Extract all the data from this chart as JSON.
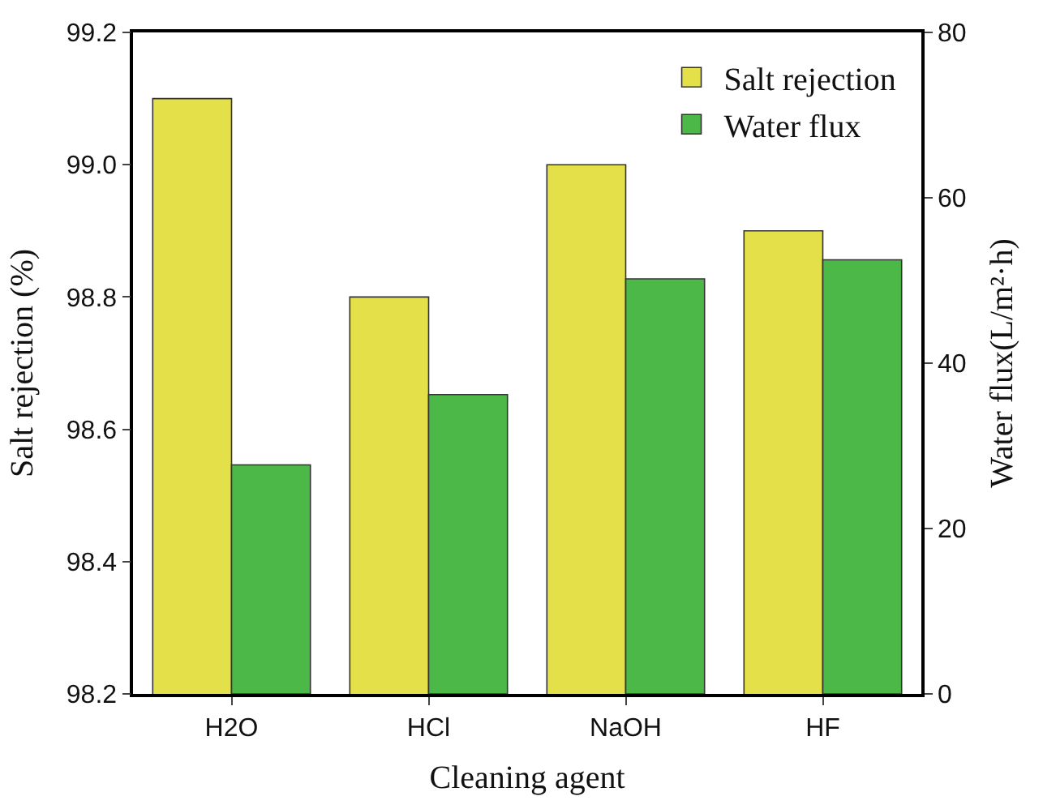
{
  "chart_data": {
    "type": "bar",
    "xlabel": "Cleaning agent",
    "ylabel": "Salt rejection (%)",
    "y2label": "Water flux(L/m²·h)",
    "categories": [
      "H2O",
      "HCl",
      "NaOH",
      "HF"
    ],
    "series": [
      {
        "name": "Salt rejection",
        "color": "#e3e04a",
        "values": [
          99.1,
          98.8,
          99.0,
          98.9
        ]
      },
      {
        "name": "Water flux",
        "color": "#4cb848",
        "axis": "y2",
        "values": [
          27.7,
          36.2,
          50.2,
          52.5
        ]
      }
    ],
    "ylim": [
      98.2,
      99.2
    ],
    "yticks": [
      {
        "value": 98.2,
        "label": "98.2"
      },
      {
        "value": 98.4,
        "label": "98.4"
      },
      {
        "value": 98.6,
        "label": "98.6"
      },
      {
        "value": 98.8,
        "label": "98.8"
      },
      {
        "value": 99.0,
        "label": "99.0"
      },
      {
        "value": 99.2,
        "label": "99.2"
      }
    ],
    "y2lim": [
      0,
      80
    ],
    "y2ticks": [
      0,
      20,
      40,
      60,
      80
    ],
    "legend": "top right"
  }
}
